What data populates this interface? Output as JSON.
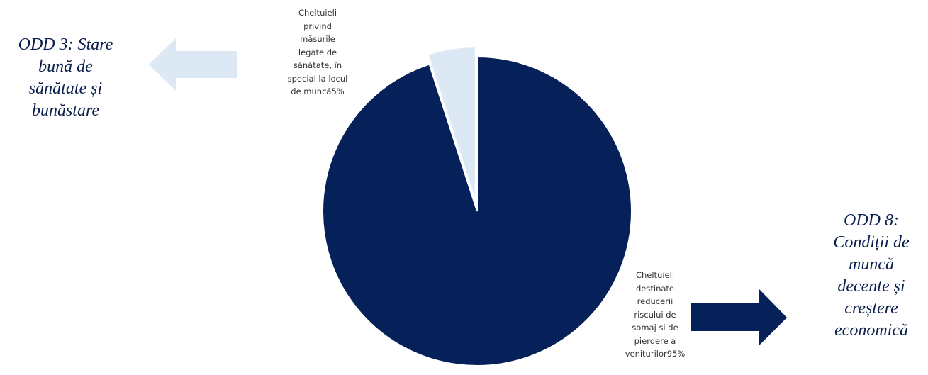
{
  "chart_data": {
    "type": "pie",
    "slices": [
      {
        "label": "Cheltuieli\nprivind\nmăsurile\nlegate de\nsănătate, în\nspecial la locul\nde muncă5%",
        "value": 5,
        "color": "#dde8f5",
        "exploded": true
      },
      {
        "label": "Cheltuieli\ndestinate\nreducerii\nriscului de\nșomaj și de\npierdere a\nveniturilor95%",
        "value": 95,
        "color": "#06215a",
        "exploded": false
      }
    ]
  },
  "annotations": {
    "left": {
      "text": "ODD 3: Stare\nbună de\nsănătate și\nbunăstare",
      "arrow_direction": "left",
      "arrow_color": "#dde8f5"
    },
    "right": {
      "text": "ODD 8:\nCondiții de\nmuncă\ndecente și\ncreștere\neconomică",
      "arrow_direction": "right",
      "arrow_color": "#06215a"
    }
  },
  "colors": {
    "text": "#0b1f4d",
    "label_text": "#333333"
  }
}
